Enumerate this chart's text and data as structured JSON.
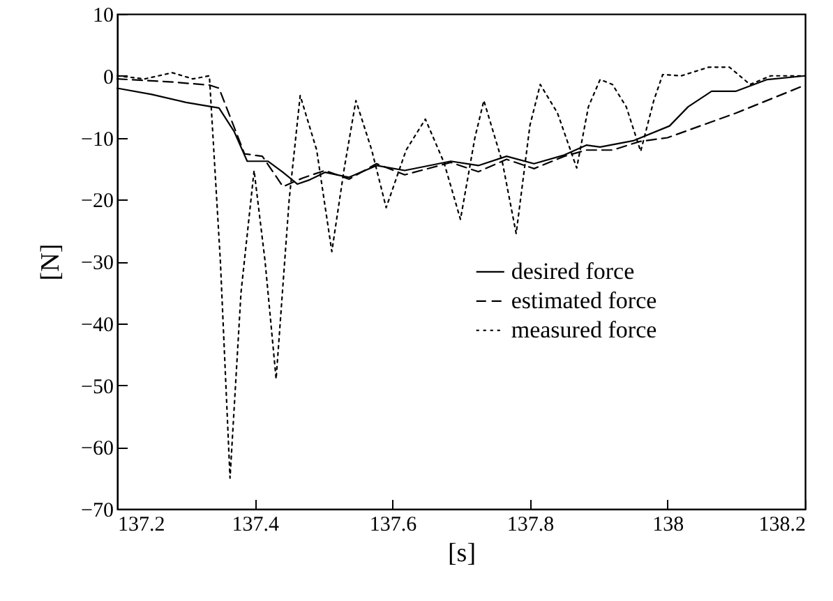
{
  "chart_data": {
    "type": "line",
    "xlabel": "[s]",
    "ylabel": "[N]",
    "xlim": [
      137.2,
      138.2
    ],
    "ylim": [
      -70,
      10
    ],
    "xticks": [
      137.2,
      137.4,
      137.6,
      137.8,
      138,
      138.2
    ],
    "yticks": [
      -70,
      -60,
      -50,
      -40,
      -30,
      -20,
      -10,
      0,
      10
    ],
    "grid": false,
    "legend": "right",
    "marker": "none",
    "series": [
      {
        "name": "desired force",
        "color": "#000000",
        "line_style": "solid",
        "x": [
          137.2,
          137.25,
          137.3,
          137.348,
          137.37,
          137.389,
          137.419,
          137.44,
          137.462,
          137.48,
          137.502,
          137.537,
          137.577,
          137.618,
          137.685,
          137.725,
          137.766,
          137.806,
          137.85,
          137.882,
          137.902,
          137.95,
          138.003,
          138.03,
          138.064,
          138.099,
          138.145,
          138.2
        ],
        "values": [
          -2,
          -3,
          -4.3,
          -5.2,
          -9,
          -13.8,
          -13.8,
          -15.5,
          -17.5,
          -16.8,
          -15.6,
          -16.4,
          -14.5,
          -15.3,
          -13.8,
          -14.5,
          -13,
          -14.2,
          -12.8,
          -11.2,
          -11.5,
          -10.5,
          -8.1,
          -5,
          -2.5,
          -2.5,
          -0.6,
          0
        ]
      },
      {
        "name": "estimated force",
        "color": "#000000",
        "line_style": "dashed",
        "x": [
          137.2,
          137.28,
          137.334,
          137.348,
          137.385,
          137.411,
          137.441,
          137.47,
          137.502,
          137.537,
          137.577,
          137.618,
          137.685,
          137.725,
          137.766,
          137.806,
          137.85,
          137.882,
          137.92,
          137.96,
          138.0,
          138.1,
          138.2
        ],
        "values": [
          -0.5,
          -1,
          -1.5,
          -2,
          -12.6,
          -13,
          -17.9,
          -16.5,
          -15.3,
          -16.7,
          -14.2,
          -16,
          -14,
          -15.5,
          -13.5,
          -15,
          -13,
          -12,
          -12,
          -10.6,
          -10,
          -6,
          -1.5
        ]
      },
      {
        "name": "measured force",
        "color": "#000000",
        "line_style": "dotted",
        "x": [
          137.2,
          137.24,
          137.28,
          137.31,
          137.334,
          137.35,
          137.364,
          137.38,
          137.399,
          137.415,
          137.431,
          137.45,
          137.466,
          137.49,
          137.512,
          137.53,
          137.547,
          137.57,
          137.591,
          137.62,
          137.648,
          137.675,
          137.699,
          137.72,
          137.733,
          137.76,
          137.78,
          137.8,
          137.815,
          137.84,
          137.868,
          137.885,
          137.902,
          137.92,
          137.94,
          137.961,
          137.98,
          137.993,
          138.02,
          138.06,
          138.09,
          138.12,
          138.15,
          138.2
        ],
        "values": [
          0,
          -0.5,
          0.5,
          -0.5,
          0,
          -30,
          -65,
          -35,
          -15.3,
          -30,
          -49,
          -20,
          -3.2,
          -12,
          -28.4,
          -15,
          -4,
          -12,
          -21.3,
          -12,
          -7,
          -14,
          -23.2,
          -10,
          -4,
          -14,
          -25.5,
          -8,
          -1.4,
          -6,
          -14.9,
          -5,
          -0.6,
          -1.4,
          -5,
          -12.2,
          -4,
          0.2,
          0,
          1.4,
          1.4,
          -1.4,
          0,
          0
        ]
      }
    ]
  }
}
